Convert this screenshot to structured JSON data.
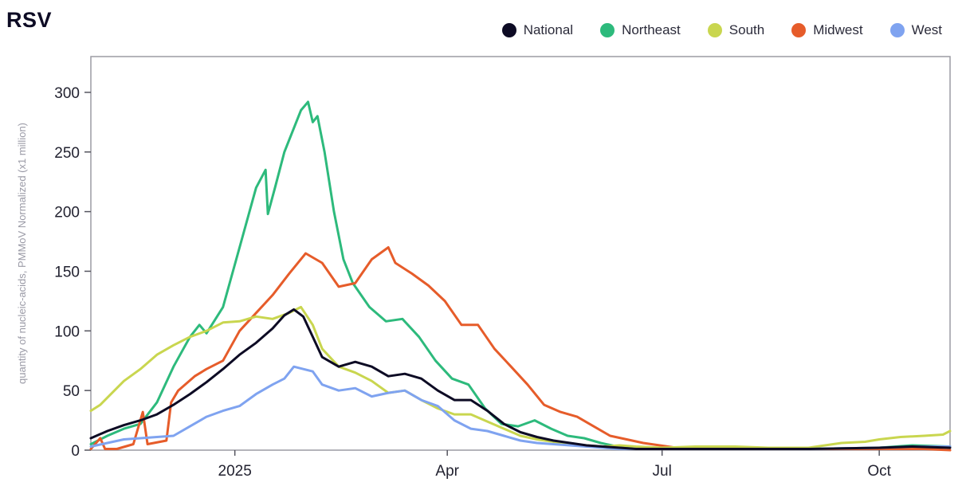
{
  "chart_data": {
    "type": "line",
    "title": "RSV",
    "ylabel": "quantity of nucleic-acids, PMMoV Normalized (x1 million)",
    "xlabel": "",
    "x_range": [
      "2024-11-01",
      "2025-10-31"
    ],
    "ylim": [
      0,
      330
    ],
    "yticks": [
      0,
      50,
      100,
      150,
      200,
      250,
      300
    ],
    "xticks": [
      {
        "date": "2025-01-01",
        "label": "2025"
      },
      {
        "date": "2025-04-01",
        "label": "Apr"
      },
      {
        "date": "2025-07-01",
        "label": "Jul"
      },
      {
        "date": "2025-10-01",
        "label": "Oct"
      }
    ],
    "grid": false,
    "legend_position": "top-right",
    "series": [
      {
        "name": "National",
        "color": "#0d0b24",
        "points": [
          [
            "2024-11-01",
            10
          ],
          [
            "2024-11-08",
            16
          ],
          [
            "2024-11-15",
            21
          ],
          [
            "2024-11-22",
            25
          ],
          [
            "2024-11-29",
            30
          ],
          [
            "2024-12-06",
            38
          ],
          [
            "2024-12-13",
            47
          ],
          [
            "2024-12-20",
            57
          ],
          [
            "2024-12-27",
            68
          ],
          [
            "2025-01-03",
            80
          ],
          [
            "2025-01-10",
            90
          ],
          [
            "2025-01-17",
            102
          ],
          [
            "2025-01-22",
            113
          ],
          [
            "2025-01-26",
            118
          ],
          [
            "2025-01-30",
            112
          ],
          [
            "2025-02-03",
            95
          ],
          [
            "2025-02-07",
            78
          ],
          [
            "2025-02-14",
            70
          ],
          [
            "2025-02-21",
            74
          ],
          [
            "2025-02-28",
            70
          ],
          [
            "2025-03-07",
            62
          ],
          [
            "2025-03-14",
            64
          ],
          [
            "2025-03-21",
            60
          ],
          [
            "2025-03-28",
            50
          ],
          [
            "2025-04-04",
            42
          ],
          [
            "2025-04-11",
            42
          ],
          [
            "2025-04-18",
            33
          ],
          [
            "2025-04-25",
            22
          ],
          [
            "2025-05-02",
            15
          ],
          [
            "2025-05-09",
            11
          ],
          [
            "2025-05-16",
            8
          ],
          [
            "2025-05-23",
            6
          ],
          [
            "2025-05-30",
            4
          ],
          [
            "2025-06-06",
            3
          ],
          [
            "2025-06-13",
            2
          ],
          [
            "2025-06-20",
            1
          ],
          [
            "2025-07-01",
            1
          ],
          [
            "2025-08-01",
            1
          ],
          [
            "2025-09-01",
            1
          ],
          [
            "2025-10-01",
            2
          ],
          [
            "2025-10-15",
            3
          ],
          [
            "2025-10-31",
            2
          ]
        ]
      },
      {
        "name": "Northeast",
        "color": "#2dba7c",
        "points": [
          [
            "2024-11-01",
            5
          ],
          [
            "2024-11-08",
            12
          ],
          [
            "2024-11-15",
            18
          ],
          [
            "2024-11-22",
            22
          ],
          [
            "2024-11-29",
            40
          ],
          [
            "2024-12-06",
            70
          ],
          [
            "2024-12-13",
            95
          ],
          [
            "2024-12-17",
            105
          ],
          [
            "2024-12-20",
            98
          ],
          [
            "2024-12-27",
            120
          ],
          [
            "2025-01-03",
            170
          ],
          [
            "2025-01-10",
            220
          ],
          [
            "2025-01-14",
            235
          ],
          [
            "2025-01-15",
            198
          ],
          [
            "2025-01-18",
            220
          ],
          [
            "2025-01-22",
            250
          ],
          [
            "2025-01-26",
            270
          ],
          [
            "2025-01-29",
            285
          ],
          [
            "2025-02-01",
            292
          ],
          [
            "2025-02-03",
            275
          ],
          [
            "2025-02-05",
            280
          ],
          [
            "2025-02-08",
            250
          ],
          [
            "2025-02-12",
            200
          ],
          [
            "2025-02-16",
            160
          ],
          [
            "2025-02-20",
            140
          ],
          [
            "2025-02-27",
            120
          ],
          [
            "2025-03-06",
            108
          ],
          [
            "2025-03-13",
            110
          ],
          [
            "2025-03-20",
            95
          ],
          [
            "2025-03-27",
            75
          ],
          [
            "2025-04-03",
            60
          ],
          [
            "2025-04-10",
            55
          ],
          [
            "2025-04-17",
            35
          ],
          [
            "2025-04-24",
            22
          ],
          [
            "2025-05-01",
            20
          ],
          [
            "2025-05-08",
            25
          ],
          [
            "2025-05-15",
            18
          ],
          [
            "2025-05-22",
            12
          ],
          [
            "2025-05-29",
            10
          ],
          [
            "2025-06-05",
            6
          ],
          [
            "2025-06-12",
            3
          ],
          [
            "2025-06-19",
            1
          ],
          [
            "2025-07-01",
            1
          ],
          [
            "2025-08-01",
            1
          ],
          [
            "2025-09-01",
            1
          ],
          [
            "2025-10-01",
            2
          ],
          [
            "2025-10-15",
            4
          ],
          [
            "2025-10-31",
            3
          ]
        ]
      },
      {
        "name": "South",
        "color": "#c9d64f",
        "points": [
          [
            "2024-11-01",
            33
          ],
          [
            "2024-11-05",
            38
          ],
          [
            "2024-11-10",
            48
          ],
          [
            "2024-11-15",
            58
          ],
          [
            "2024-11-22",
            68
          ],
          [
            "2024-11-29",
            80
          ],
          [
            "2024-12-06",
            88
          ],
          [
            "2024-12-13",
            95
          ],
          [
            "2024-12-20",
            100
          ],
          [
            "2024-12-27",
            107
          ],
          [
            "2025-01-03",
            108
          ],
          [
            "2025-01-10",
            112
          ],
          [
            "2025-01-17",
            110
          ],
          [
            "2025-01-24",
            115
          ],
          [
            "2025-01-29",
            120
          ],
          [
            "2025-02-03",
            105
          ],
          [
            "2025-02-07",
            85
          ],
          [
            "2025-02-14",
            70
          ],
          [
            "2025-02-21",
            65
          ],
          [
            "2025-02-28",
            58
          ],
          [
            "2025-03-07",
            48
          ],
          [
            "2025-03-14",
            50
          ],
          [
            "2025-03-21",
            42
          ],
          [
            "2025-03-28",
            35
          ],
          [
            "2025-04-04",
            30
          ],
          [
            "2025-04-11",
            30
          ],
          [
            "2025-04-18",
            24
          ],
          [
            "2025-04-25",
            18
          ],
          [
            "2025-05-02",
            12
          ],
          [
            "2025-05-09",
            9
          ],
          [
            "2025-05-16",
            7
          ],
          [
            "2025-05-23",
            5
          ],
          [
            "2025-05-30",
            4
          ],
          [
            "2025-06-06",
            3
          ],
          [
            "2025-06-13",
            4
          ],
          [
            "2025-06-20",
            3
          ],
          [
            "2025-07-01",
            2
          ],
          [
            "2025-07-15",
            3
          ],
          [
            "2025-08-01",
            3
          ],
          [
            "2025-08-15",
            2
          ],
          [
            "2025-09-01",
            2
          ],
          [
            "2025-09-15",
            6
          ],
          [
            "2025-09-25",
            7
          ],
          [
            "2025-10-01",
            9
          ],
          [
            "2025-10-10",
            11
          ],
          [
            "2025-10-20",
            12
          ],
          [
            "2025-10-28",
            13
          ],
          [
            "2025-10-31",
            16
          ]
        ]
      },
      {
        "name": "Midwest",
        "color": "#e65c2a",
        "points": [
          [
            "2024-11-01",
            1
          ],
          [
            "2024-11-05",
            10
          ],
          [
            "2024-11-07",
            1
          ],
          [
            "2024-11-12",
            1
          ],
          [
            "2024-11-19",
            5
          ],
          [
            "2024-11-23",
            32
          ],
          [
            "2024-11-25",
            5
          ],
          [
            "2024-12-03",
            8
          ],
          [
            "2024-12-05",
            40
          ],
          [
            "2024-12-08",
            50
          ],
          [
            "2024-12-15",
            62
          ],
          [
            "2024-12-20",
            68
          ],
          [
            "2024-12-27",
            75
          ],
          [
            "2025-01-03",
            100
          ],
          [
            "2025-01-10",
            115
          ],
          [
            "2025-01-17",
            130
          ],
          [
            "2025-01-24",
            148
          ],
          [
            "2025-01-31",
            165
          ],
          [
            "2025-02-07",
            157
          ],
          [
            "2025-02-14",
            137
          ],
          [
            "2025-02-21",
            140
          ],
          [
            "2025-02-28",
            160
          ],
          [
            "2025-03-07",
            170
          ],
          [
            "2025-03-10",
            157
          ],
          [
            "2025-03-17",
            148
          ],
          [
            "2025-03-24",
            138
          ],
          [
            "2025-03-31",
            125
          ],
          [
            "2025-04-07",
            105
          ],
          [
            "2025-04-14",
            105
          ],
          [
            "2025-04-21",
            85
          ],
          [
            "2025-04-28",
            70
          ],
          [
            "2025-05-05",
            55
          ],
          [
            "2025-05-12",
            38
          ],
          [
            "2025-05-19",
            32
          ],
          [
            "2025-05-26",
            28
          ],
          [
            "2025-06-02",
            20
          ],
          [
            "2025-06-09",
            12
          ],
          [
            "2025-06-16",
            9
          ],
          [
            "2025-06-23",
            6
          ],
          [
            "2025-06-30",
            4
          ],
          [
            "2025-07-07",
            2
          ],
          [
            "2025-07-14",
            1
          ],
          [
            "2025-08-01",
            1
          ],
          [
            "2025-09-01",
            1
          ],
          [
            "2025-10-01",
            1
          ],
          [
            "2025-10-20",
            1
          ],
          [
            "2025-10-31",
            0
          ]
        ]
      },
      {
        "name": "West",
        "color": "#7fa3f0",
        "points": [
          [
            "2024-11-01",
            3
          ],
          [
            "2024-11-08",
            6
          ],
          [
            "2024-11-15",
            9
          ],
          [
            "2024-11-22",
            10
          ],
          [
            "2024-11-29",
            11
          ],
          [
            "2024-12-06",
            12
          ],
          [
            "2024-12-13",
            20
          ],
          [
            "2024-12-20",
            28
          ],
          [
            "2024-12-27",
            33
          ],
          [
            "2025-01-03",
            37
          ],
          [
            "2025-01-10",
            47
          ],
          [
            "2025-01-17",
            55
          ],
          [
            "2025-01-22",
            60
          ],
          [
            "2025-01-26",
            70
          ],
          [
            "2025-01-30",
            68
          ],
          [
            "2025-02-03",
            66
          ],
          [
            "2025-02-07",
            55
          ],
          [
            "2025-02-14",
            50
          ],
          [
            "2025-02-21",
            52
          ],
          [
            "2025-02-28",
            45
          ],
          [
            "2025-03-07",
            48
          ],
          [
            "2025-03-14",
            50
          ],
          [
            "2025-03-21",
            42
          ],
          [
            "2025-03-28",
            37
          ],
          [
            "2025-04-04",
            25
          ],
          [
            "2025-04-11",
            18
          ],
          [
            "2025-04-18",
            16
          ],
          [
            "2025-04-25",
            12
          ],
          [
            "2025-05-02",
            8
          ],
          [
            "2025-05-09",
            6
          ],
          [
            "2025-05-16",
            5
          ],
          [
            "2025-05-23",
            4
          ],
          [
            "2025-05-30",
            3
          ],
          [
            "2025-06-06",
            2
          ],
          [
            "2025-06-13",
            1
          ],
          [
            "2025-07-01",
            1
          ],
          [
            "2025-08-01",
            1
          ],
          [
            "2025-09-01",
            1
          ],
          [
            "2025-10-01",
            2
          ],
          [
            "2025-10-15",
            3
          ],
          [
            "2025-10-31",
            3
          ]
        ]
      }
    ]
  }
}
